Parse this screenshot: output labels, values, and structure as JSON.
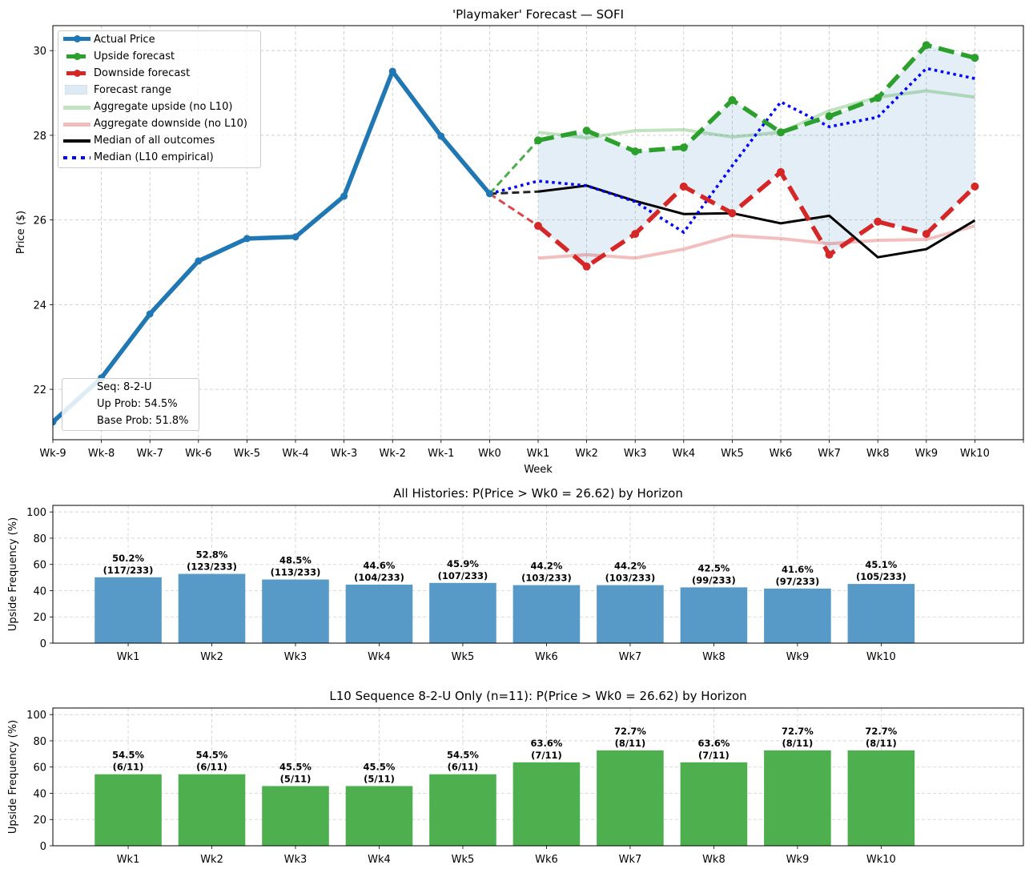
{
  "chart_data": [
    {
      "type": "line",
      "title": "'Playmaker' Forecast — SOFI",
      "xlabel": "Week",
      "ylabel": "Price ($)",
      "x_categories": [
        "Wk-9",
        "Wk-8",
        "Wk-7",
        "Wk-6",
        "Wk-5",
        "Wk-4",
        "Wk-3",
        "Wk-2",
        "Wk-1",
        "Wk0",
        "Wk1",
        "Wk2",
        "Wk3",
        "Wk4",
        "Wk5",
        "Wk6",
        "Wk7",
        "Wk8",
        "Wk9",
        "Wk10",
        ""
      ],
      "ylim": [
        20.81,
        30.59
      ],
      "yticks": [
        22,
        24,
        26,
        28,
        30
      ],
      "grid": true,
      "legend_position": "top-left",
      "series": [
        {
          "name": "Actual Price",
          "key": "actual",
          "color": "#1f77b4",
          "x": [
            "Wk-9",
            "Wk-8",
            "Wk-7",
            "Wk-6",
            "Wk-5",
            "Wk-4",
            "Wk-3",
            "Wk-2",
            "Wk-1",
            "Wk0"
          ],
          "values": [
            21.23,
            22.27,
            23.78,
            25.03,
            25.56,
            25.6,
            26.56,
            29.51,
            27.98,
            26.62
          ]
        },
        {
          "name": "Upside forecast",
          "key": "upside",
          "color": "#2ca02c",
          "x": [
            "Wk1",
            "Wk2",
            "Wk3",
            "Wk4",
            "Wk5",
            "Wk6",
            "Wk7",
            "Wk8",
            "Wk9",
            "Wk10"
          ],
          "values": [
            27.88,
            28.11,
            27.62,
            27.71,
            28.83,
            28.07,
            28.45,
            28.88,
            30.13,
            29.83
          ]
        },
        {
          "name": "Downside forecast",
          "key": "downside",
          "color": "#d62728",
          "x": [
            "Wk1",
            "Wk2",
            "Wk3",
            "Wk4",
            "Wk5",
            "Wk6",
            "Wk7",
            "Wk8",
            "Wk9",
            "Wk10"
          ],
          "values": [
            25.86,
            24.9,
            25.67,
            26.79,
            26.16,
            27.13,
            25.18,
            25.96,
            25.67,
            26.79
          ]
        },
        {
          "name": "Forecast range",
          "key": "range",
          "color": "#1f77b4"
        },
        {
          "name": "Aggregate upside (no L10)",
          "key": "agg_up",
          "color": "#2ca02c",
          "x": [
            "Wk1",
            "Wk2",
            "Wk3",
            "Wk4",
            "Wk5",
            "Wk6",
            "Wk7",
            "Wk8",
            "Wk9",
            "Wk10"
          ],
          "values": [
            28.07,
            27.94,
            28.11,
            28.13,
            27.96,
            28.07,
            28.58,
            28.9,
            29.05,
            28.9
          ]
        },
        {
          "name": "Aggregate downside (no L10)",
          "key": "agg_down",
          "color": "#d62728",
          "x": [
            "Wk1",
            "Wk2",
            "Wk3",
            "Wk4",
            "Wk5",
            "Wk6",
            "Wk7",
            "Wk8",
            "Wk9",
            "Wk10"
          ],
          "values": [
            25.1,
            25.18,
            25.1,
            25.31,
            25.63,
            25.56,
            25.44,
            25.52,
            25.54,
            25.86
          ]
        },
        {
          "name": "Median of all outcomes",
          "key": "median_all",
          "color": "#000000",
          "x": [
            "Wk1",
            "Wk2",
            "Wk3",
            "Wk4",
            "Wk5",
            "Wk6",
            "Wk7",
            "Wk8",
            "Wk9",
            "Wk10"
          ],
          "values": [
            26.67,
            26.81,
            26.45,
            26.14,
            26.16,
            25.92,
            26.1,
            25.12,
            25.31,
            25.99
          ]
        },
        {
          "name": "Median (L10 empirical)",
          "key": "median_l10",
          "color": "#0000ff",
          "x": [
            "Wk1",
            "Wk2",
            "Wk3",
            "Wk4",
            "Wk5",
            "Wk6",
            "Wk7",
            "Wk8",
            "Wk9",
            "Wk10"
          ],
          "values": [
            26.92,
            26.81,
            26.43,
            25.71,
            27.28,
            28.79,
            28.2,
            28.43,
            29.58,
            29.34
          ]
        }
      ],
      "annotation": {
        "seq": "Seq: 8-2-U",
        "up_prob": "Up Prob: 54.5%",
        "base_prob": "Base Prob: 51.8%"
      }
    },
    {
      "type": "bar",
      "title": "All Histories: P(Price > Wk0 = 26.62) by Horizon",
      "xlabel": "",
      "ylabel": "Upside Frequency (%)",
      "ylim": [
        0,
        105
      ],
      "yticks": [
        0,
        20,
        40,
        60,
        80,
        100
      ],
      "grid": true,
      "color": "#5799c7",
      "categories": [
        "Wk1",
        "Wk2",
        "Wk3",
        "Wk4",
        "Wk5",
        "Wk6",
        "Wk7",
        "Wk8",
        "Wk9",
        "Wk10"
      ],
      "values": [
        50.2,
        52.8,
        48.5,
        44.6,
        45.9,
        44.2,
        44.2,
        42.5,
        41.6,
        45.1
      ],
      "labels_pct": [
        "50.2%",
        "52.8%",
        "48.5%",
        "44.6%",
        "45.9%",
        "44.2%",
        "44.2%",
        "42.5%",
        "41.6%",
        "45.1%"
      ],
      "labels_count": [
        "(117/233)",
        "(123/233)",
        "(113/233)",
        "(104/233)",
        "(107/233)",
        "(103/233)",
        "(103/233)",
        "(99/233)",
        "(97/233)",
        "(105/233)"
      ]
    },
    {
      "type": "bar",
      "title": "L10 Sequence 8-2-U Only (n=11): P(Price > Wk0 = 26.62) by Horizon",
      "xlabel": "",
      "ylabel": "Upside Frequency (%)",
      "ylim": [
        0,
        105
      ],
      "yticks": [
        0,
        20,
        40,
        60,
        80,
        100
      ],
      "grid": true,
      "color": "#4daf4e",
      "categories": [
        "Wk1",
        "Wk2",
        "Wk3",
        "Wk4",
        "Wk5",
        "Wk6",
        "Wk7",
        "Wk8",
        "Wk9",
        "Wk10"
      ],
      "values": [
        54.5,
        54.5,
        45.5,
        45.5,
        54.5,
        63.6,
        72.7,
        63.6,
        72.7,
        72.7
      ],
      "labels_pct": [
        "54.5%",
        "54.5%",
        "45.5%",
        "45.5%",
        "54.5%",
        "63.6%",
        "72.7%",
        "63.6%",
        "72.7%",
        "72.7%"
      ],
      "labels_count": [
        "(6/11)",
        "(6/11)",
        "(5/11)",
        "(5/11)",
        "(6/11)",
        "(7/11)",
        "(8/11)",
        "(7/11)",
        "(8/11)",
        "(8/11)"
      ]
    }
  ]
}
